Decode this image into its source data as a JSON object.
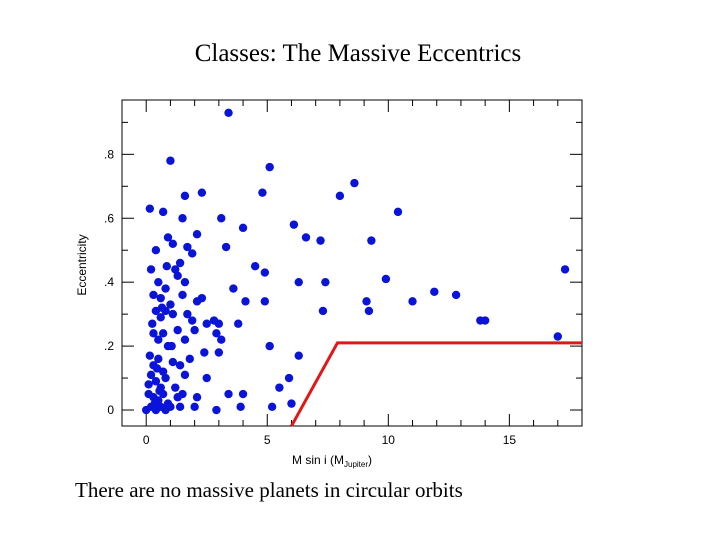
{
  "slide": {
    "title": "Classes: The Massive Eccentrics",
    "caption": "There are no massive planets in circular orbits"
  },
  "colors": {
    "points": "#0a14d8",
    "boundary": "#e01818",
    "axes": "#000000"
  },
  "chart_data": {
    "type": "scatter",
    "title": "Classes: The Massive Eccentrics",
    "xlabel": "M sin i (M",
    "xlabel_sub": "Jupiter",
    "xlabel_end": ")",
    "ylabel": "Eccentricity",
    "xlim": [
      -1,
      18
    ],
    "ylim": [
      -0.05,
      0.97
    ],
    "xticks": [
      0,
      5,
      10,
      15
    ],
    "xtick_labels": [
      "0",
      "5",
      "10",
      "15"
    ],
    "yticks": [
      0,
      0.2,
      0.4,
      0.6,
      0.8
    ],
    "ytick_labels": [
      "0",
      ".2",
      ".4",
      ".6",
      ".8"
    ],
    "series": [
      {
        "name": "planets",
        "points": [
          [
            3.4,
            0.93
          ],
          [
            1.0,
            0.78
          ],
          [
            5.1,
            0.76
          ],
          [
            8.6,
            0.71
          ],
          [
            8.0,
            0.67
          ],
          [
            1.6,
            0.67
          ],
          [
            2.3,
            0.68
          ],
          [
            4.8,
            0.68
          ],
          [
            10.4,
            0.62
          ],
          [
            0.15,
            0.63
          ],
          [
            0.7,
            0.62
          ],
          [
            1.5,
            0.6
          ],
          [
            6.1,
            0.58
          ],
          [
            3.1,
            0.6
          ],
          [
            4.0,
            0.57
          ],
          [
            6.6,
            0.54
          ],
          [
            0.4,
            0.5
          ],
          [
            0.9,
            0.54
          ],
          [
            1.1,
            0.52
          ],
          [
            1.7,
            0.51
          ],
          [
            1.9,
            0.49
          ],
          [
            2.1,
            0.55
          ],
          [
            3.3,
            0.51
          ],
          [
            7.2,
            0.53
          ],
          [
            9.3,
            0.53
          ],
          [
            0.2,
            0.44
          ],
          [
            0.5,
            0.4
          ],
          [
            0.8,
            0.38
          ],
          [
            1.2,
            0.44
          ],
          [
            1.3,
            0.42
          ],
          [
            1.4,
            0.46
          ],
          [
            1.6,
            0.4
          ],
          [
            4.5,
            0.45
          ],
          [
            4.9,
            0.43
          ],
          [
            6.3,
            0.4
          ],
          [
            7.4,
            0.4
          ],
          [
            9.9,
            0.41
          ],
          [
            17.3,
            0.44
          ],
          [
            0.3,
            0.36
          ],
          [
            0.6,
            0.35
          ],
          [
            1.0,
            0.33
          ],
          [
            1.5,
            0.36
          ],
          [
            2.1,
            0.34
          ],
          [
            2.3,
            0.35
          ],
          [
            3.6,
            0.38
          ],
          [
            4.1,
            0.34
          ],
          [
            4.9,
            0.34
          ],
          [
            9.1,
            0.34
          ],
          [
            11.0,
            0.34
          ],
          [
            11.9,
            0.37
          ],
          [
            12.8,
            0.36
          ],
          [
            0.4,
            0.31
          ],
          [
            0.6,
            0.29
          ],
          [
            0.8,
            0.31
          ],
          [
            1.1,
            0.3
          ],
          [
            1.7,
            0.3
          ],
          [
            1.9,
            0.28
          ],
          [
            2.5,
            0.27
          ],
          [
            2.8,
            0.28
          ],
          [
            3.0,
            0.27
          ],
          [
            3.8,
            0.27
          ],
          [
            7.3,
            0.31
          ],
          [
            9.2,
            0.31
          ],
          [
            13.8,
            0.28
          ],
          [
            14.0,
            0.28
          ],
          [
            0.3,
            0.24
          ],
          [
            0.5,
            0.22
          ],
          [
            0.7,
            0.24
          ],
          [
            0.9,
            0.2
          ],
          [
            1.3,
            0.25
          ],
          [
            1.6,
            0.22
          ],
          [
            2.0,
            0.25
          ],
          [
            2.9,
            0.24
          ],
          [
            3.1,
            0.22
          ],
          [
            5.1,
            0.2
          ],
          [
            17.0,
            0.23
          ],
          [
            0.15,
            0.17
          ],
          [
            0.3,
            0.14
          ],
          [
            0.5,
            0.16
          ],
          [
            0.7,
            0.12
          ],
          [
            1.1,
            0.15
          ],
          [
            1.4,
            0.14
          ],
          [
            1.8,
            0.16
          ],
          [
            2.4,
            0.18
          ],
          [
            3.0,
            0.18
          ],
          [
            6.3,
            0.17
          ],
          [
            0.2,
            0.11
          ],
          [
            0.4,
            0.09
          ],
          [
            0.6,
            0.07
          ],
          [
            0.8,
            0.1
          ],
          [
            1.2,
            0.07
          ],
          [
            1.6,
            0.11
          ],
          [
            2.5,
            0.1
          ],
          [
            5.9,
            0.1
          ],
          [
            0.1,
            0.05
          ],
          [
            0.3,
            0.04
          ],
          [
            0.5,
            0.03
          ],
          [
            0.7,
            0.05
          ],
          [
            0.9,
            0.02
          ],
          [
            1.3,
            0.04
          ],
          [
            1.5,
            0.05
          ],
          [
            2.1,
            0.04
          ],
          [
            3.4,
            0.05
          ],
          [
            4.0,
            0.05
          ],
          [
            5.5,
            0.07
          ],
          [
            0.0,
            0.0
          ],
          [
            0.2,
            0.01
          ],
          [
            0.4,
            0.0
          ],
          [
            0.6,
            0.01
          ],
          [
            0.8,
            0.0
          ],
          [
            1.0,
            0.01
          ],
          [
            1.4,
            0.01
          ],
          [
            2.0,
            0.01
          ],
          [
            2.9,
            0.0
          ],
          [
            3.9,
            0.01
          ],
          [
            5.2,
            0.01
          ],
          [
            6.0,
            0.02
          ],
          [
            0.1,
            0.08
          ],
          [
            0.45,
            0.13
          ],
          [
            1.05,
            0.2
          ],
          [
            0.25,
            0.27
          ],
          [
            0.65,
            0.32
          ],
          [
            0.85,
            0.45
          ],
          [
            0.35,
            0.02
          ],
          [
            0.55,
            0.06
          ]
        ]
      }
    ],
    "boundary_line": {
      "name": "lower envelope",
      "points": [
        [
          6.0,
          -0.05
        ],
        [
          7.9,
          0.21
        ],
        [
          18.0,
          0.21
        ]
      ]
    }
  }
}
